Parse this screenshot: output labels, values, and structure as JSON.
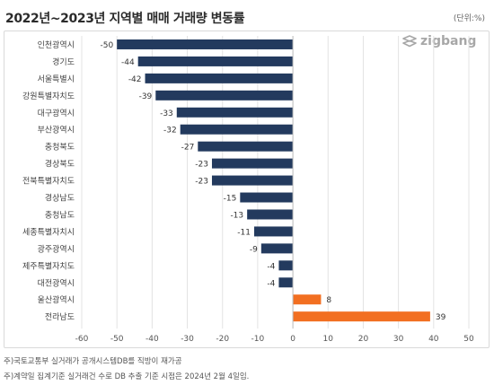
{
  "header": {
    "title": "2022년~2023년 지역별 매매 거래량 변동률",
    "unit": "(단위:%)"
  },
  "logo": {
    "text": "zigbang"
  },
  "notes": [
    "주)국토교통부 실거래가 공개시스템DB를 직방이 재가공",
    "주)계약일 집계기준 실거래건 수로 DB 추출 기준 시점은 2024년 2월 4일임."
  ],
  "colors": {
    "negative": "#233a5e",
    "positive": "#f26f21",
    "grid": "#e3e3e3",
    "axis": "#555555"
  },
  "chart_data": {
    "type": "bar",
    "orientation": "horizontal",
    "title": "2022년~2023년 지역별 매매 거래량 변동률",
    "unit": "(단위:%)",
    "categories": [
      "인천광역시",
      "경기도",
      "서울특별시",
      "강원특별자치도",
      "대구광역시",
      "부산광역시",
      "충청북도",
      "경상북도",
      "전북특별자치도",
      "경상남도",
      "충청남도",
      "세종특별자치시",
      "광주광역시",
      "제주특별자치도",
      "대전광역시",
      "울산광역시",
      "전라남도"
    ],
    "values": [
      -50,
      -44,
      -42,
      -39,
      -33,
      -32,
      -27,
      -23,
      -23,
      -15,
      -13,
      -11,
      -9,
      -4,
      -4,
      8,
      39
    ],
    "xlim": [
      -60,
      50
    ],
    "xticks": [
      -60,
      -50,
      -40,
      -30,
      -20,
      -10,
      0,
      10,
      20,
      30,
      40,
      50
    ],
    "grid": true
  }
}
